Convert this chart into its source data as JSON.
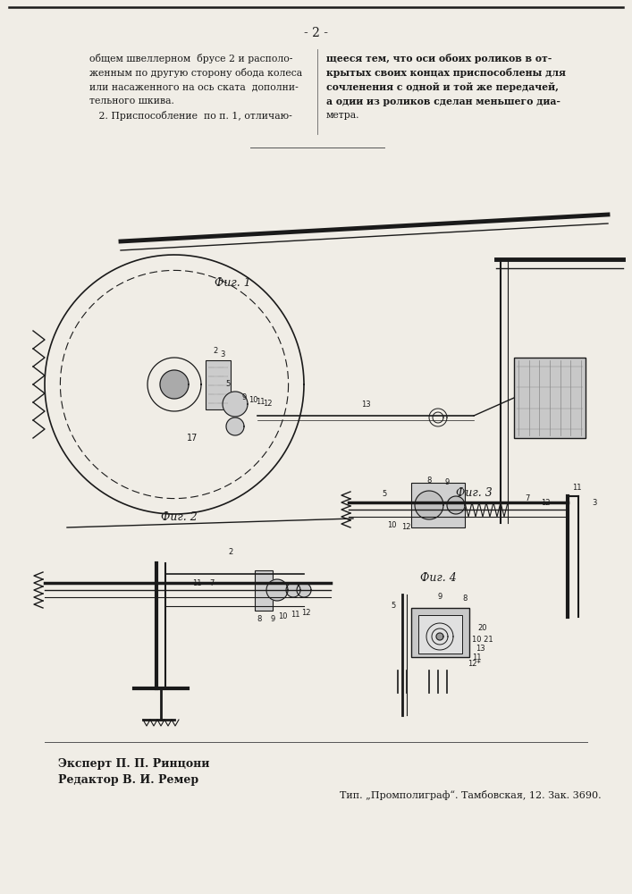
{
  "page_number": "- 2 -",
  "background_color": "#f0ede6",
  "text_color": "#1a1a1a",
  "dark": "#1a1a1a",
  "left_column_text": [
    "общем швеллерном  брусе 2 и располо-",
    "женным по другую сторону обода колеса",
    "или насаженного на ось ската  дополни-",
    "тельного шкива.",
    "   2. Приспособление  по п. 1, отличаю-"
  ],
  "right_column_text": [
    "щееся тем, что оси обоих роликов в от-",
    "крытых своих концах приспособлены для",
    "сочленения с одной и той же передачей,",
    "а одии из роликов сделан меньшего диа-",
    "метра."
  ],
  "fig1_label": "Фиг. 1",
  "fig2_label": "Фиг. 2",
  "fig3_label": "Фиг. 3",
  "fig4_label": "Фиг. 4",
  "expert_text": "Эксперт П. П. Ринцони",
  "editor_text": "Редактор В. И. Ремер",
  "publisher_text": "Тип. „Промполиграф“. Тамбовская, 12. Зак. 3690."
}
